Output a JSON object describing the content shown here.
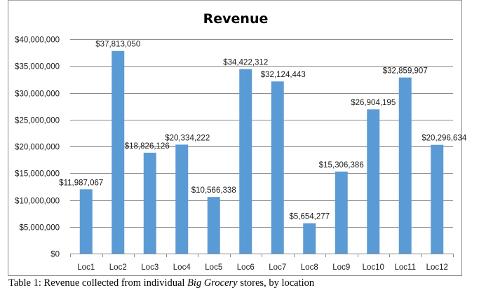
{
  "chart_data": {
    "type": "bar",
    "title": "Revenue",
    "xlabel": "",
    "ylabel": "",
    "categories": [
      "Loc1",
      "Loc2",
      "Loc3",
      "Loc4",
      "Loc5",
      "Loc6",
      "Loc7",
      "Loc8",
      "Loc9",
      "Loc10",
      "Loc11",
      "Loc12"
    ],
    "values": [
      11987067,
      37813050,
      18826126,
      20334222,
      10566338,
      34422312,
      32124443,
      5654277,
      15306386,
      26904195,
      32859907,
      20296634
    ],
    "data_labels": [
      "$11,987,067",
      "$37,813,050",
      "$18,826,126",
      "$20,334,222",
      "$10,566,338",
      "$34,422,312",
      "$32,124,443",
      "$5,654,277",
      "$15,306,386",
      "$26,904,195",
      "$32,859,907",
      "$20,296,634"
    ],
    "ylim": [
      0,
      40000000
    ],
    "yticks": [
      0,
      5000000,
      10000000,
      15000000,
      20000000,
      25000000,
      30000000,
      35000000,
      40000000
    ],
    "ytick_labels": [
      "$0",
      "$5,000,000",
      "$10,000,000",
      "$15,000,000",
      "$20,000,000",
      "$25,000,000",
      "$30,000,000",
      "$35,000,000",
      "$40,000,000"
    ],
    "grid": true,
    "legend": "none",
    "bar_color": "#5b9bd5",
    "grid_color": "#8c8c8c"
  },
  "caption": {
    "prefix": "Table 1: Revenue collected from individual ",
    "emphasis": "Big Grocery",
    "suffix": " stores, by location"
  }
}
